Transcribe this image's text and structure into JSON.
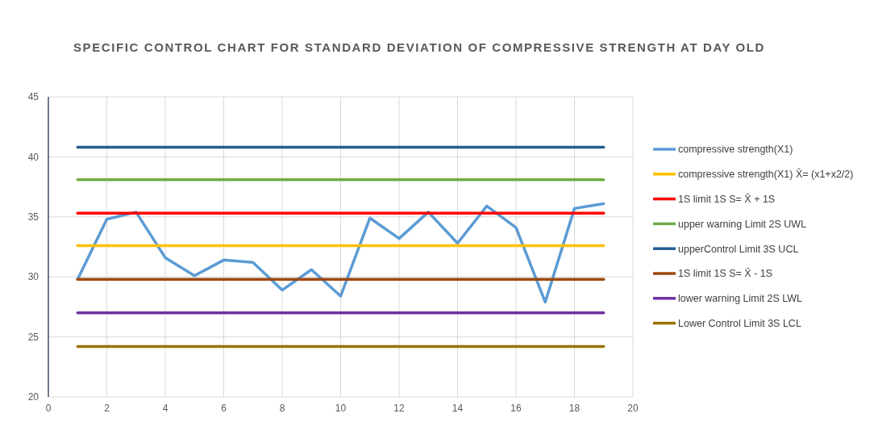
{
  "chart_data": {
    "type": "line",
    "title": "SPECIFIC CONTROL CHART FOR STANDARD DEVIATION OF COMPRESSIVE STRENGTH AT DAY OLD",
    "x": [
      1,
      2,
      3,
      4,
      5,
      6,
      7,
      8,
      9,
      10,
      11,
      12,
      13,
      14,
      15,
      16,
      17,
      18,
      19
    ],
    "series": [
      {
        "name": "compressive strength(X1)",
        "color": "#5b9bd5",
        "values": [
          29.8,
          34.8,
          35.4,
          31.6,
          30.1,
          31.4,
          31.2,
          28.9,
          30.6,
          28.4,
          34.9,
          33.2,
          35.4,
          32.8,
          35.9,
          34.1,
          27.9,
          35.7,
          36.1
        ]
      },
      {
        "name": "compressive strength(X1) X̄= (x1+x2/2)",
        "color": "#ffc000",
        "values": [
          32.6,
          32.6,
          32.6,
          32.6,
          32.6,
          32.6,
          32.6,
          32.6,
          32.6,
          32.6,
          32.6,
          32.6,
          32.6,
          32.6,
          32.6,
          32.6,
          32.6,
          32.6,
          32.6
        ]
      },
      {
        "name": "1S limit 1S S= X̄ + 1S",
        "color": "#ff0000",
        "values": [
          35.3,
          35.3,
          35.3,
          35.3,
          35.3,
          35.3,
          35.3,
          35.3,
          35.3,
          35.3,
          35.3,
          35.3,
          35.3,
          35.3,
          35.3,
          35.3,
          35.3,
          35.3,
          35.3
        ]
      },
      {
        "name": "upper warning Limit 2S UWL",
        "color": "#70ad47",
        "values": [
          38.1,
          38.1,
          38.1,
          38.1,
          38.1,
          38.1,
          38.1,
          38.1,
          38.1,
          38.1,
          38.1,
          38.1,
          38.1,
          38.1,
          38.1,
          38.1,
          38.1,
          38.1,
          38.1
        ]
      },
      {
        "name": "upperControl  Limit 3S UCL",
        "color": "#255e91",
        "values": [
          40.8,
          40.8,
          40.8,
          40.8,
          40.8,
          40.8,
          40.8,
          40.8,
          40.8,
          40.8,
          40.8,
          40.8,
          40.8,
          40.8,
          40.8,
          40.8,
          40.8,
          40.8,
          40.8
        ]
      },
      {
        "name": "1S limit 1S S= X̄ - 1S",
        "color": "#9e480e",
        "values": [
          29.8,
          29.8,
          29.8,
          29.8,
          29.8,
          29.8,
          29.8,
          29.8,
          29.8,
          29.8,
          29.8,
          29.8,
          29.8,
          29.8,
          29.8,
          29.8,
          29.8,
          29.8,
          29.8
        ]
      },
      {
        "name": "lower warning Limit 2S LWL",
        "color": "#7030a0",
        "values": [
          27.0,
          27.0,
          27.0,
          27.0,
          27.0,
          27.0,
          27.0,
          27.0,
          27.0,
          27.0,
          27.0,
          27.0,
          27.0,
          27.0,
          27.0,
          27.0,
          27.0,
          27.0,
          27.0
        ]
      },
      {
        "name": "Lower Control  Limit 3S LCL",
        "color": "#997300",
        "values": [
          24.2,
          24.2,
          24.2,
          24.2,
          24.2,
          24.2,
          24.2,
          24.2,
          24.2,
          24.2,
          24.2,
          24.2,
          24.2,
          24.2,
          24.2,
          24.2,
          24.2,
          24.2,
          24.2
        ]
      }
    ],
    "xlim": [
      0,
      20
    ],
    "xticks": [
      0,
      2,
      4,
      6,
      8,
      10,
      12,
      14,
      16,
      18,
      20
    ],
    "ylim": [
      20,
      45
    ],
    "yticks": [
      20,
      25,
      30,
      35,
      40,
      45
    ],
    "grid": true,
    "legend": "right",
    "marker": "none",
    "line_style": "solid"
  }
}
